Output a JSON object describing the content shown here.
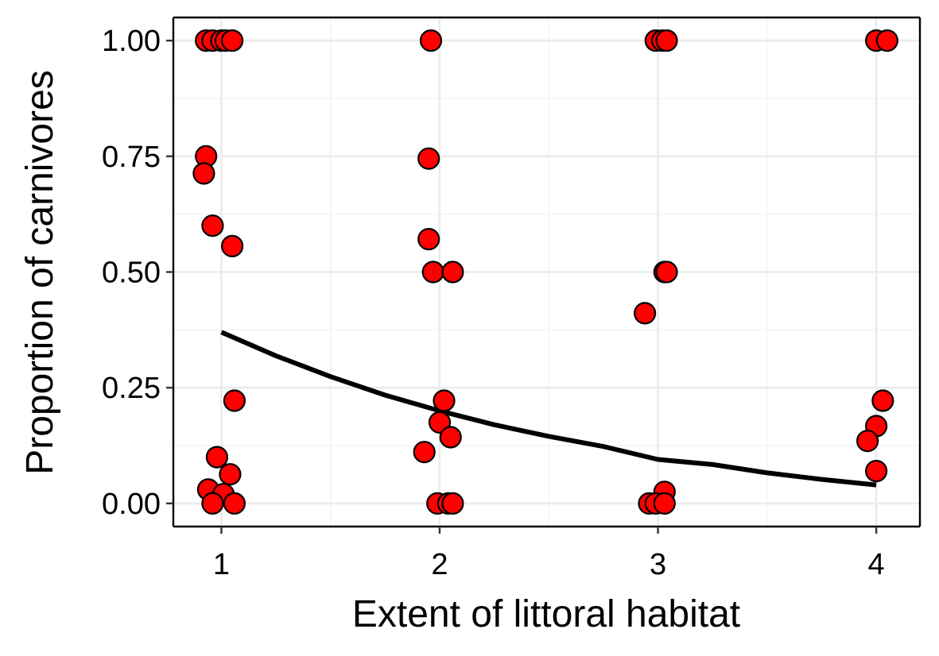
{
  "chart_data": {
    "type": "scatter",
    "title": "",
    "xlabel": "Extent of littoral habitat",
    "ylabel": "Proportion of carnivores",
    "xlim": [
      0.78,
      4.2
    ],
    "ylim": [
      -0.05,
      1.05
    ],
    "x_ticks": [
      1,
      2,
      3,
      4
    ],
    "x_tick_labels": [
      "1",
      "2",
      "3",
      "4"
    ],
    "y_ticks": [
      0,
      0.25,
      0.5,
      0.75,
      1
    ],
    "y_tick_labels": [
      "0.00",
      "0.25",
      "0.50",
      "0.75",
      "1.00"
    ],
    "grid": true,
    "legend": "none",
    "point_color": "#ff0000",
    "point_outline": "#000000",
    "line_color": "#000000",
    "points": [
      {
        "x": 0.93,
        "y": 1.0
      },
      {
        "x": 0.96,
        "y": 1.0
      },
      {
        "x": 1.0,
        "y": 1.0
      },
      {
        "x": 1.02,
        "y": 1.0
      },
      {
        "x": 1.05,
        "y": 1.0
      },
      {
        "x": 0.93,
        "y": 0.75
      },
      {
        "x": 0.92,
        "y": 0.713
      },
      {
        "x": 0.96,
        "y": 0.6
      },
      {
        "x": 1.05,
        "y": 0.556
      },
      {
        "x": 1.06,
        "y": 0.222
      },
      {
        "x": 0.98,
        "y": 0.1
      },
      {
        "x": 1.04,
        "y": 0.063
      },
      {
        "x": 0.94,
        "y": 0.03
      },
      {
        "x": 1.01,
        "y": 0.02
      },
      {
        "x": 0.96,
        "y": 0.0
      },
      {
        "x": 1.06,
        "y": 0.0
      },
      {
        "x": 1.96,
        "y": 1.0
      },
      {
        "x": 1.95,
        "y": 0.745
      },
      {
        "x": 1.95,
        "y": 0.571
      },
      {
        "x": 1.97,
        "y": 0.5
      },
      {
        "x": 2.06,
        "y": 0.5
      },
      {
        "x": 2.02,
        "y": 0.222
      },
      {
        "x": 2.0,
        "y": 0.175
      },
      {
        "x": 2.05,
        "y": 0.143
      },
      {
        "x": 1.93,
        "y": 0.111
      },
      {
        "x": 1.99,
        "y": 0.0
      },
      {
        "x": 2.04,
        "y": 0.0
      },
      {
        "x": 2.06,
        "y": 0.0
      },
      {
        "x": 2.99,
        "y": 1.0
      },
      {
        "x": 3.02,
        "y": 1.0
      },
      {
        "x": 3.04,
        "y": 1.0
      },
      {
        "x": 3.03,
        "y": 0.5
      },
      {
        "x": 3.04,
        "y": 0.5
      },
      {
        "x": 2.94,
        "y": 0.411
      },
      {
        "x": 3.03,
        "y": 0.025
      },
      {
        "x": 2.96,
        "y": 0.0
      },
      {
        "x": 2.99,
        "y": 0.0
      },
      {
        "x": 3.03,
        "y": 0.0
      },
      {
        "x": 4.0,
        "y": 1.0
      },
      {
        "x": 4.05,
        "y": 1.0
      },
      {
        "x": 4.03,
        "y": 0.222
      },
      {
        "x": 4.0,
        "y": 0.167
      },
      {
        "x": 3.96,
        "y": 0.135
      },
      {
        "x": 4.0,
        "y": 0.07
      }
    ],
    "fit": {
      "x": [
        1.0,
        1.25,
        1.5,
        1.75,
        2.0,
        2.25,
        2.5,
        2.75,
        3.0,
        3.25,
        3.5,
        3.75,
        4.0
      ],
      "y": [
        0.37,
        0.319,
        0.274,
        0.234,
        0.2,
        0.17,
        0.145,
        0.123,
        0.095,
        0.084,
        0.066,
        0.052,
        0.04
      ]
    }
  }
}
